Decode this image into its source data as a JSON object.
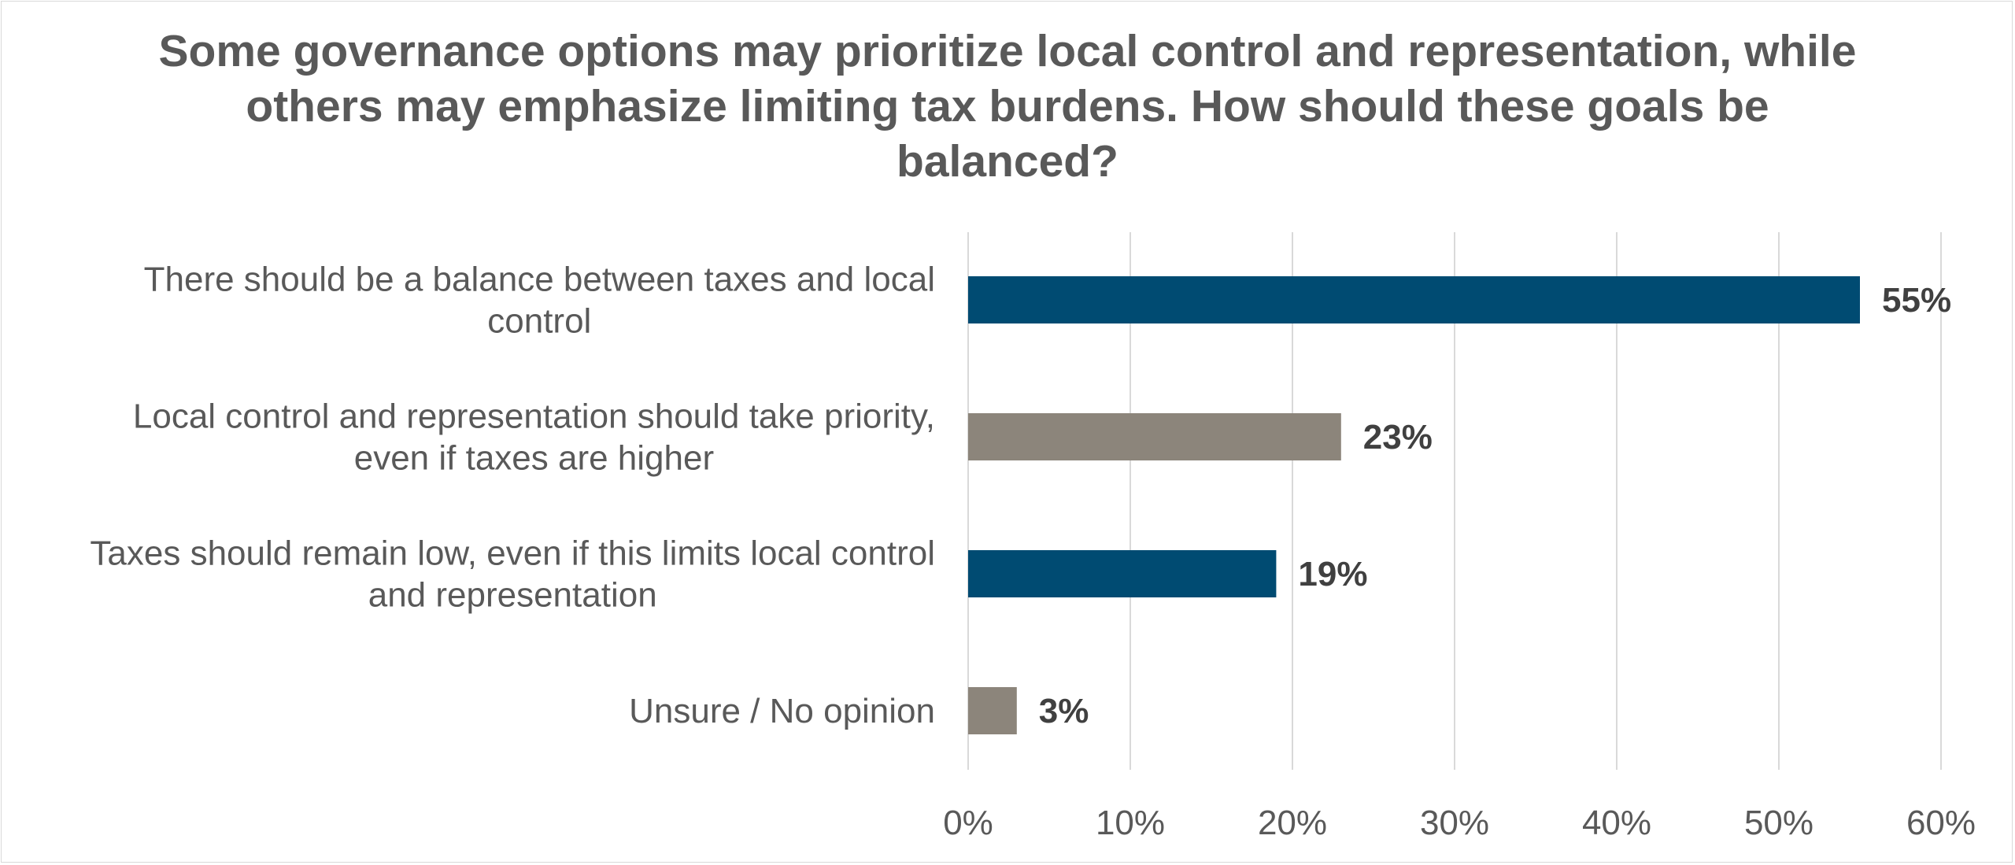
{
  "chart_data": {
    "type": "bar",
    "orientation": "horizontal",
    "title": "Some governance options may prioritize local control and representation, while others may emphasize limiting tax burdens. How should these goals be balanced?",
    "categories": [
      [
        "There should be a balance between taxes and local",
        "control"
      ],
      [
        "Local control and representation should take priority,",
        "even if taxes are higher"
      ],
      [
        "Taxes should remain low, even if this limits local control",
        "and representation"
      ],
      [
        "Unsure / No opinion"
      ]
    ],
    "values": [
      55,
      23,
      19,
      3
    ],
    "data_labels": [
      "55%",
      "23%",
      "19%",
      "3%"
    ],
    "bar_colors": [
      "#004b72",
      "#8c857b",
      "#004b72",
      "#8c857b"
    ],
    "x_ticks": [
      "0%",
      "10%",
      "20%",
      "30%",
      "40%",
      "50%",
      "60%"
    ],
    "xlim": [
      0,
      60
    ],
    "grid": true,
    "legend": "none"
  },
  "colors": {
    "gridline": "#d9d9d9",
    "text": "#595959",
    "data_label": "#404040",
    "border": "#d9d9d9"
  }
}
